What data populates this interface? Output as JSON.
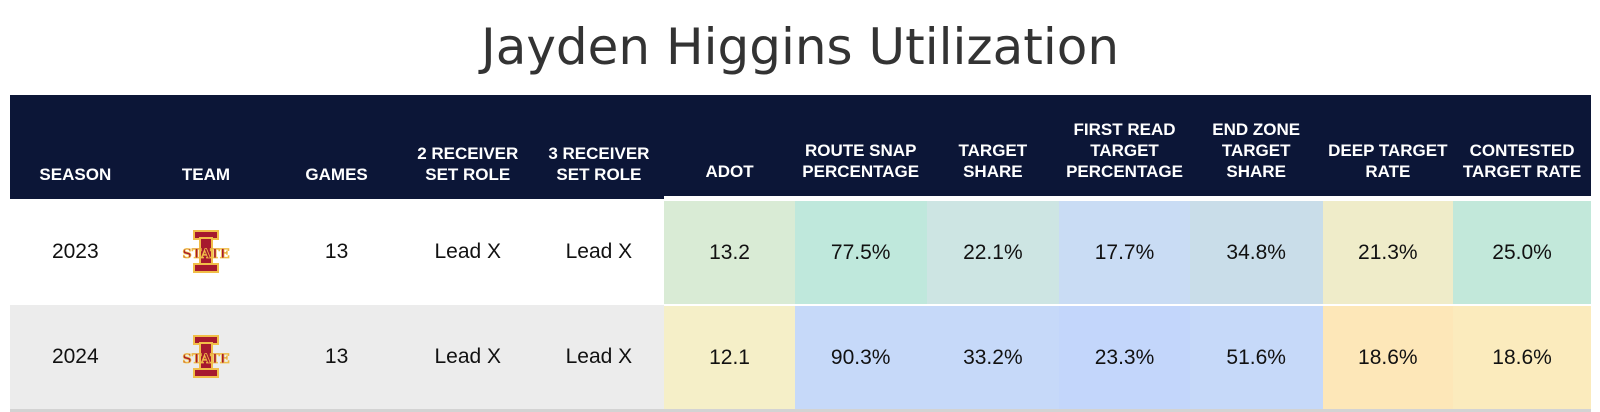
{
  "title": "Jayden Higgins Utilization",
  "columns": [
    "SEASON",
    "TEAM",
    "GAMES",
    "2 RECEIVER SET ROLE",
    "3 RECEIVER SET ROLE",
    "ADOT",
    "ROUTE SNAP PERCENTAGE",
    "TARGET SHARE",
    "FIRST READ TARGET PERCENTAGE",
    "END ZONE TARGET SHARE",
    "DEEP TARGET RATE",
    "CONTESTED TARGET RATE"
  ],
  "rows": [
    {
      "season": "2023",
      "team_logo": "iowa-state-logo",
      "team_logo_text": "STATE",
      "games": "13",
      "role2": "Lead X",
      "role3": "Lead X",
      "adot": "13.2",
      "route_snap": "77.5%",
      "target_share": "22.1%",
      "first_read": "17.7%",
      "end_zone": "34.8%",
      "deep_rate": "21.3%",
      "contested_rate": "25.0%",
      "colors": {
        "adot": "#d9ebd5",
        "route_snap": "#bfe8dc",
        "target_share": "#cde5e3",
        "first_read": "#c9dcf4",
        "end_zone": "#c9dde9",
        "deep_rate": "#efecc9",
        "contested_rate": "#c2e8da"
      }
    },
    {
      "season": "2024",
      "team_logo": "iowa-state-logo",
      "team_logo_text": "STATE",
      "games": "13",
      "role2": "Lead X",
      "role3": "Lead X",
      "adot": "12.1",
      "route_snap": "90.3%",
      "target_share": "33.2%",
      "first_read": "23.3%",
      "end_zone": "51.6%",
      "deep_rate": "18.6%",
      "contested_rate": "18.6%",
      "colors": {
        "adot": "#f5efc8",
        "route_snap": "#c6d9f9",
        "target_share": "#c6d9f9",
        "first_read": "#c3d6fb",
        "end_zone": "#c6d9f9",
        "deep_rate": "#fde7b8",
        "contested_rate": "#fbebbd"
      }
    }
  ],
  "brand_colors": {
    "header_bg": "#0c1637",
    "logo_red": "#a6192e",
    "logo_gold": "#f1be48"
  }
}
